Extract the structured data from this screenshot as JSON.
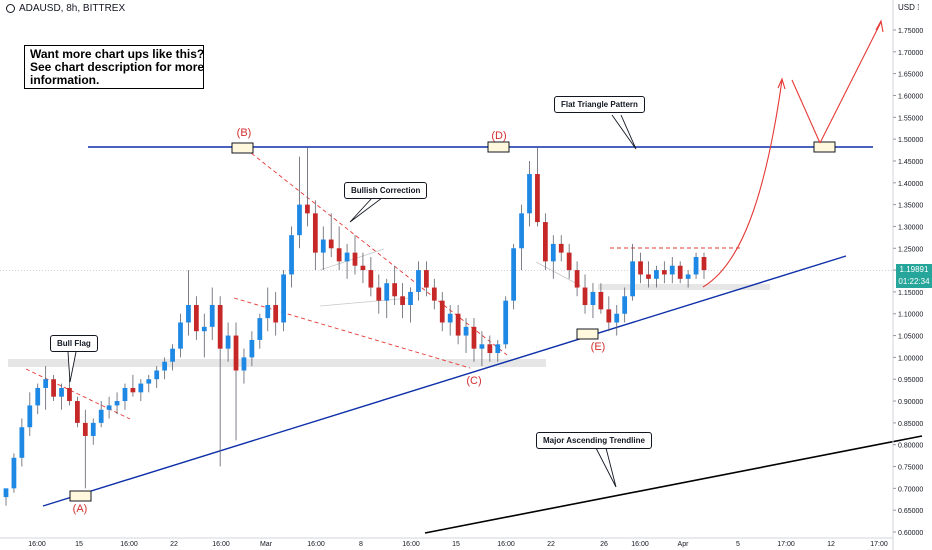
{
  "header": {
    "symbol": "ADAUSD, 8h, BITTREX"
  },
  "promo": {
    "lines": [
      "Want more chart ups like this?",
      "See chart description for more",
      "information."
    ]
  },
  "annotations": {
    "flat_triangle": "Flat Triangle Pattern",
    "bullish_correction": "Bullish Correction",
    "bull_flag": "Bull Flag",
    "major_trendline": "Major Ascending Trendline"
  },
  "wave_labels": {
    "A": "(A)",
    "B": "(B)",
    "C": "(C)",
    "D": "(D)",
    "E": "(E)"
  },
  "price_scale": {
    "currency": "USD",
    "current_price": "1.19891",
    "countdown": "01:22:34"
  },
  "colors": {
    "bull": "#1e88e5",
    "bear": "#c62828",
    "trendline_blue": "#0d2fa8",
    "trendline_black": "#000000",
    "annotation_red": "#e53935",
    "price_badge": "#26a69a"
  },
  "chart_data": {
    "type": "candlestick",
    "symbol": "ADAUSD",
    "timeframe": "8h",
    "exchange": "BITTREX",
    "y_ticks": [
      "1.75000",
      "1.70000",
      "1.65000",
      "1.60000",
      "1.55000",
      "1.50000",
      "1.45000",
      "1.40000",
      "1.35000",
      "1.30000",
      "1.25000",
      "1.20000",
      "1.15000",
      "1.10000",
      "1.05000",
      "1.00000",
      "0.95000",
      "0.90000",
      "0.85000",
      "0.80000",
      "0.75000",
      "0.70000",
      "0.65000",
      "0.60000"
    ],
    "x_ticks": [
      "16:00",
      "15",
      "16:00",
      "22",
      "16:00",
      "Mar",
      "16:00",
      "8",
      "16:00",
      "15",
      "16:00",
      "22",
      "26",
      "16:00",
      "Apr",
      "5",
      "17:00",
      "12",
      "17:00"
    ],
    "ylim": [
      0.6,
      1.78
    ],
    "last_price": 1.19891,
    "candles": [
      [
        0.68,
        0.7,
        0.66,
        0.7
      ],
      [
        0.7,
        0.78,
        0.69,
        0.77
      ],
      [
        0.77,
        0.86,
        0.75,
        0.84
      ],
      [
        0.84,
        0.92,
        0.82,
        0.89
      ],
      [
        0.89,
        0.94,
        0.87,
        0.93
      ],
      [
        0.93,
        0.98,
        0.88,
        0.95
      ],
      [
        0.95,
        0.96,
        0.9,
        0.91
      ],
      [
        0.91,
        0.94,
        0.88,
        0.93
      ],
      [
        0.93,
        0.95,
        0.89,
        0.9
      ],
      [
        0.9,
        0.91,
        0.84,
        0.85
      ],
      [
        0.85,
        0.88,
        0.7,
        0.82
      ],
      [
        0.82,
        0.86,
        0.8,
        0.85
      ],
      [
        0.85,
        0.9,
        0.84,
        0.88
      ],
      [
        0.88,
        0.91,
        0.86,
        0.89
      ],
      [
        0.89,
        0.92,
        0.87,
        0.9
      ],
      [
        0.9,
        0.94,
        0.88,
        0.93
      ],
      [
        0.93,
        0.96,
        0.91,
        0.92
      ],
      [
        0.92,
        0.95,
        0.9,
        0.94
      ],
      [
        0.94,
        0.96,
        0.92,
        0.95
      ],
      [
        0.95,
        0.98,
        0.93,
        0.97
      ],
      [
        0.97,
        1.0,
        0.95,
        0.99
      ],
      [
        0.99,
        1.03,
        0.97,
        1.02
      ],
      [
        1.02,
        1.1,
        1.0,
        1.08
      ],
      [
        1.08,
        1.2,
        1.05,
        1.12
      ],
      [
        1.12,
        1.14,
        1.04,
        1.06
      ],
      [
        1.06,
        1.1,
        1.0,
        1.07
      ],
      [
        1.07,
        1.16,
        1.04,
        1.12
      ],
      [
        1.12,
        1.14,
        0.75,
        1.02
      ],
      [
        1.02,
        1.08,
        0.99,
        1.05
      ],
      [
        1.05,
        1.08,
        0.81,
        0.97
      ],
      [
        0.97,
        1.02,
        0.94,
        1.0
      ],
      [
        1.0,
        1.06,
        0.98,
        1.04
      ],
      [
        1.04,
        1.1,
        1.02,
        1.09
      ],
      [
        1.09,
        1.16,
        1.06,
        1.12
      ],
      [
        1.12,
        1.15,
        1.05,
        1.08
      ],
      [
        1.08,
        1.2,
        1.06,
        1.19
      ],
      [
        1.19,
        1.3,
        1.16,
        1.28
      ],
      [
        1.28,
        1.46,
        1.25,
        1.35
      ],
      [
        1.35,
        1.48,
        1.3,
        1.33
      ],
      [
        1.33,
        1.36,
        1.2,
        1.24
      ],
      [
        1.24,
        1.3,
        1.2,
        1.27
      ],
      [
        1.27,
        1.33,
        1.23,
        1.25
      ],
      [
        1.25,
        1.3,
        1.2,
        1.22
      ],
      [
        1.22,
        1.26,
        1.18,
        1.24
      ],
      [
        1.24,
        1.28,
        1.19,
        1.21
      ],
      [
        1.21,
        1.24,
        1.17,
        1.2
      ],
      [
        1.2,
        1.23,
        1.14,
        1.16
      ],
      [
        1.16,
        1.19,
        1.1,
        1.13
      ],
      [
        1.13,
        1.18,
        1.09,
        1.17
      ],
      [
        1.17,
        1.21,
        1.12,
        1.14
      ],
      [
        1.14,
        1.17,
        1.09,
        1.12
      ],
      [
        1.12,
        1.16,
        1.08,
        1.15
      ],
      [
        1.15,
        1.22,
        1.13,
        1.2
      ],
      [
        1.2,
        1.22,
        1.14,
        1.16
      ],
      [
        1.16,
        1.18,
        1.11,
        1.13
      ],
      [
        1.13,
        1.15,
        1.06,
        1.08
      ],
      [
        1.08,
        1.12,
        1.05,
        1.1
      ],
      [
        1.1,
        1.12,
        1.03,
        1.05
      ],
      [
        1.05,
        1.09,
        1.01,
        1.07
      ],
      [
        1.07,
        1.09,
        0.99,
        1.02
      ],
      [
        1.02,
        1.06,
        0.98,
        1.03
      ],
      [
        1.03,
        1.05,
        0.99,
        1.01
      ],
      [
        1.01,
        1.04,
        0.99,
        1.03
      ],
      [
        1.03,
        1.14,
        1.02,
        1.13
      ],
      [
        1.13,
        1.26,
        1.11,
        1.25
      ],
      [
        1.25,
        1.35,
        1.2,
        1.33
      ],
      [
        1.33,
        1.45,
        1.3,
        1.42
      ],
      [
        1.42,
        1.48,
        1.3,
        1.31
      ],
      [
        1.31,
        1.33,
        1.2,
        1.22
      ],
      [
        1.22,
        1.28,
        1.18,
        1.26
      ],
      [
        1.26,
        1.28,
        1.22,
        1.24
      ],
      [
        1.24,
        1.26,
        1.18,
        1.2
      ],
      [
        1.2,
        1.22,
        1.14,
        1.16
      ],
      [
        1.16,
        1.19,
        1.1,
        1.12
      ],
      [
        1.12,
        1.17,
        1.09,
        1.15
      ],
      [
        1.15,
        1.17,
        1.1,
        1.11
      ],
      [
        1.11,
        1.14,
        1.06,
        1.08
      ],
      [
        1.08,
        1.12,
        1.05,
        1.1
      ],
      [
        1.1,
        1.16,
        1.08,
        1.14
      ],
      [
        1.14,
        1.26,
        1.13,
        1.22
      ],
      [
        1.22,
        1.24,
        1.17,
        1.19
      ],
      [
        1.19,
        1.22,
        1.16,
        1.18
      ],
      [
        1.18,
        1.21,
        1.16,
        1.2
      ],
      [
        1.2,
        1.22,
        1.17,
        1.19
      ],
      [
        1.19,
        1.23,
        1.17,
        1.21
      ],
      [
        1.21,
        1.22,
        1.17,
        1.18
      ],
      [
        1.18,
        1.2,
        1.16,
        1.19
      ],
      [
        1.19,
        1.24,
        1.18,
        1.23
      ],
      [
        1.23,
        1.24,
        1.18,
        1.2
      ]
    ]
  }
}
